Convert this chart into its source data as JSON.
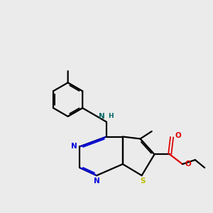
{
  "bg_color": "#ebebeb",
  "bond_color": "#000000",
  "N_color": "#0000dd",
  "S_color": "#bbbb00",
  "O_color": "#dd0000",
  "NH_color": "#006666",
  "H_color": "#006666",
  "figsize": [
    3.0,
    3.0
  ],
  "dpi": 100,
  "xlim": [
    0,
    10
  ],
  "ylim": [
    0,
    10
  ]
}
